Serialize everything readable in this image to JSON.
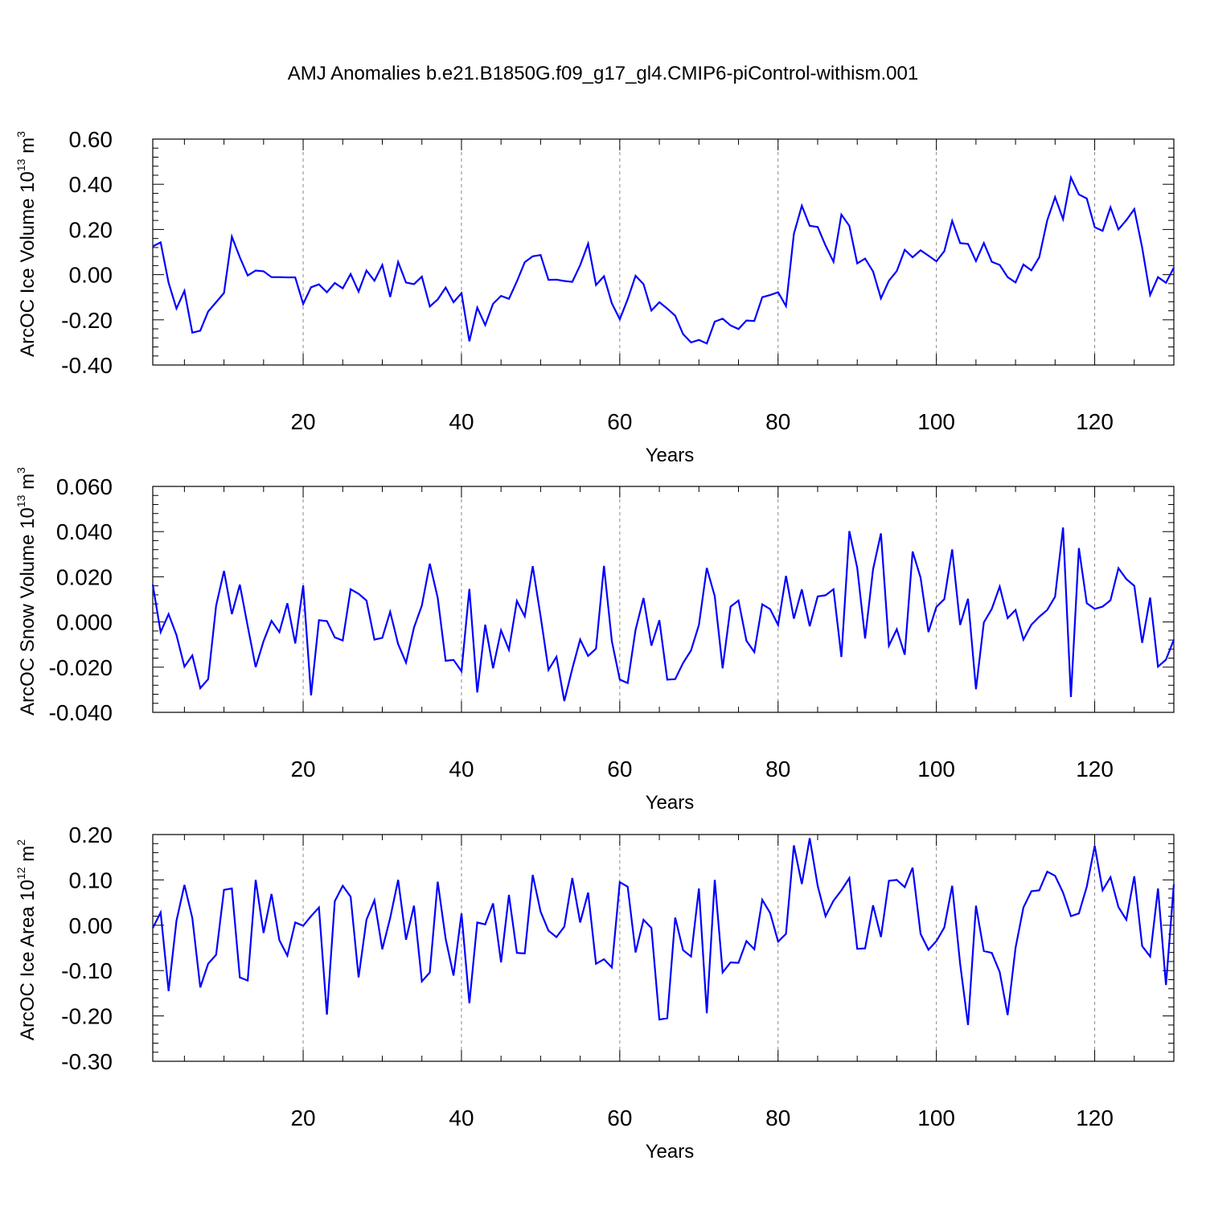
{
  "figure_title": "AMJ Anomalies b.e21.B1850G.f09_g17_gl4.CMIP6-piControl-withism.001",
  "line_color": "#0000ff",
  "chart_data": [
    {
      "type": "line",
      "title": "",
      "xlabel": "Years",
      "ylabel_main": "ArcOC Ice Volume 10",
      "ylabel_exp": "13",
      "ylabel_unit": " m",
      "ylabel_unit_exp": "3",
      "xlim": [
        1,
        130
      ],
      "ylim": [
        -0.4,
        0.6
      ],
      "x_ticks": [
        20,
        40,
        60,
        80,
        100,
        120
      ],
      "x_tick_labels": [
        "20",
        "40",
        "60",
        "80",
        "100",
        "120"
      ],
      "y_ticks": [
        -0.4,
        -0.2,
        0.0,
        0.2,
        0.4,
        0.6
      ],
      "y_tick_labels": [
        "-0.40",
        "-0.20",
        "0.00",
        "0.20",
        "0.40",
        "0.60"
      ],
      "grid_x": [
        20,
        40,
        60,
        80,
        100,
        120
      ],
      "series": [
        {
          "name": "Ice Volume",
          "x_start": 1,
          "values": [
            0.125,
            0.143,
            -0.036,
            -0.15,
            -0.072,
            -0.257,
            -0.248,
            -0.163,
            -0.122,
            -0.081,
            0.168,
            0.077,
            -0.004,
            0.018,
            0.015,
            -0.011,
            -0.011,
            -0.012,
            -0.012,
            -0.13,
            -0.056,
            -0.043,
            -0.078,
            -0.037,
            -0.061,
            0.003,
            -0.075,
            0.018,
            -0.027,
            0.043,
            -0.099,
            0.056,
            -0.035,
            -0.042,
            -0.009,
            -0.141,
            -0.11,
            -0.057,
            -0.122,
            -0.082,
            -0.295,
            -0.146,
            -0.223,
            -0.129,
            -0.094,
            -0.107,
            -0.03,
            0.055,
            0.081,
            0.087,
            -0.023,
            -0.022,
            -0.028,
            -0.032,
            0.042,
            0.137,
            -0.046,
            -0.007,
            -0.127,
            -0.197,
            -0.109,
            -0.005,
            -0.042,
            -0.159,
            -0.122,
            -0.15,
            -0.182,
            -0.263,
            -0.3,
            -0.289,
            -0.305,
            -0.208,
            -0.195,
            -0.225,
            -0.241,
            -0.203,
            -0.205,
            -0.1,
            -0.09,
            -0.078,
            -0.139,
            0.18,
            0.305,
            0.216,
            0.211,
            0.129,
            0.057,
            0.266,
            0.216,
            0.05,
            0.071,
            0.014,
            -0.105,
            -0.027,
            0.016,
            0.11,
            0.077,
            0.108,
            0.084,
            0.059,
            0.104,
            0.238,
            0.14,
            0.136,
            0.06,
            0.14,
            0.057,
            0.043,
            -0.011,
            -0.035,
            0.045,
            0.019,
            0.077,
            0.24,
            0.343,
            0.246,
            0.43,
            0.355,
            0.337,
            0.21,
            0.194,
            0.298,
            0.2,
            0.241,
            0.29,
            0.12,
            -0.09,
            -0.011,
            -0.036,
            0.031
          ]
        }
      ]
    },
    {
      "type": "line",
      "title": "",
      "xlabel": "Years",
      "ylabel_main": "ArcOC Snow Volume 10",
      "ylabel_exp": "13",
      "ylabel_unit": " m",
      "ylabel_unit_exp": "3",
      "xlim": [
        1,
        130
      ],
      "ylim": [
        -0.04,
        0.06
      ],
      "x_ticks": [
        20,
        40,
        60,
        80,
        100,
        120
      ],
      "x_tick_labels": [
        "20",
        "40",
        "60",
        "80",
        "100",
        "120"
      ],
      "y_ticks": [
        -0.04,
        -0.02,
        0.0,
        0.02,
        0.04,
        0.06
      ],
      "y_tick_labels": [
        "-0.040",
        "-0.020",
        "0.000",
        "0.020",
        "0.040",
        "0.060"
      ],
      "grid_x": [
        20,
        40,
        60,
        80,
        100,
        120
      ],
      "series": [
        {
          "name": "Snow Volume",
          "x_start": 1,
          "values": [
            0.0165,
            -0.0045,
            0.0035,
            -0.0058,
            -0.0198,
            -0.0148,
            -0.0293,
            -0.0253,
            0.0072,
            0.0226,
            0.0035,
            0.0165,
            -0.0019,
            -0.02,
            -0.0085,
            0.0005,
            -0.0045,
            0.0083,
            -0.0095,
            0.0162,
            -0.0325,
            0.0008,
            0.0004,
            -0.0068,
            -0.0082,
            0.0145,
            0.0125,
            0.0095,
            -0.0078,
            -0.007,
            0.0045,
            -0.0098,
            -0.018,
            -0.0025,
            0.0073,
            0.0258,
            0.0107,
            -0.0172,
            -0.0168,
            -0.0218,
            0.0146,
            -0.0312,
            -0.0012,
            -0.0205,
            -0.0037,
            -0.0123,
            0.0093,
            0.0025,
            0.0247,
            0.0025,
            -0.0212,
            -0.0154,
            -0.035,
            -0.0207,
            -0.0078,
            -0.015,
            -0.0118,
            0.0248,
            -0.0085,
            -0.0255,
            -0.027,
            -0.0035,
            0.0106,
            -0.0105,
            0.0008,
            -0.0255,
            -0.0253,
            -0.0182,
            -0.0126,
            -0.0013,
            0.0239,
            0.0114,
            -0.0205,
            0.0068,
            0.0095,
            -0.0083,
            -0.0133,
            0.0078,
            0.0057,
            -0.0013,
            0.0204,
            0.0015,
            0.0144,
            -0.0019,
            0.0113,
            0.0118,
            0.0145,
            -0.0155,
            0.0402,
            0.024,
            -0.0073,
            0.0233,
            0.0392,
            -0.0105,
            -0.0032,
            -0.0145,
            0.0312,
            0.0196,
            -0.0045,
            0.0067,
            0.0101,
            0.0321,
            -0.0013,
            0.0103,
            -0.0298,
            -0.0002,
            0.0058,
            0.0157,
            0.0017,
            0.0053,
            -0.0078,
            -0.0012,
            0.0023,
            0.0053,
            0.0112,
            0.0418,
            -0.0332,
            0.0327,
            0.0083,
            0.0058,
            0.0068,
            0.0096,
            0.0238,
            0.019,
            0.016,
            -0.0092,
            0.0108,
            -0.0198,
            -0.0167,
            -0.0078
          ]
        }
      ]
    },
    {
      "type": "line",
      "title": "",
      "xlabel": "Years",
      "ylabel_main": "ArcOC Ice Area 10",
      "ylabel_exp": "12",
      "ylabel_unit": " m",
      "ylabel_unit_exp": "2",
      "xlim": [
        1,
        130
      ],
      "ylim": [
        -0.3,
        0.2
      ],
      "x_ticks": [
        20,
        40,
        60,
        80,
        100,
        120
      ],
      "x_tick_labels": [
        "20",
        "40",
        "60",
        "80",
        "100",
        "120"
      ],
      "y_ticks": [
        -0.3,
        -0.2,
        -0.1,
        0.0,
        0.1,
        0.2
      ],
      "y_tick_labels": [
        "-0.30",
        "-0.20",
        "-0.10",
        "0.00",
        "0.10",
        "0.20"
      ],
      "grid_x": [
        20,
        40,
        60,
        80,
        100,
        120
      ],
      "series": [
        {
          "name": "Ice Area",
          "x_start": 1,
          "values": [
            -0.006,
            0.028,
            -0.145,
            0.01,
            0.089,
            0.016,
            -0.137,
            -0.085,
            -0.065,
            0.078,
            0.081,
            -0.115,
            -0.122,
            0.1,
            -0.017,
            0.069,
            -0.033,
            -0.067,
            0.006,
            -0.001,
            0.02,
            0.039,
            -0.197,
            0.053,
            0.087,
            0.063,
            -0.115,
            0.012,
            0.055,
            -0.053,
            0.016,
            0.1,
            -0.032,
            0.043,
            -0.124,
            -0.104,
            0.096,
            -0.03,
            -0.111,
            0.026,
            -0.172,
            0.006,
            0.002,
            0.048,
            -0.082,
            0.067,
            -0.061,
            -0.062,
            0.111,
            0.03,
            -0.012,
            -0.026,
            -0.003,
            0.104,
            0.006,
            0.072,
            -0.085,
            -0.075,
            -0.093,
            0.095,
            0.085,
            -0.06,
            0.012,
            -0.006,
            -0.208,
            -0.205,
            0.017,
            -0.055,
            -0.069,
            0.081,
            -0.194,
            0.1,
            -0.104,
            -0.082,
            -0.083,
            -0.035,
            -0.053,
            0.056,
            0.027,
            -0.036,
            -0.019,
            0.176,
            0.091,
            0.192,
            0.087,
            0.02,
            0.054,
            0.077,
            0.104,
            -0.052,
            -0.051,
            0.044,
            -0.026,
            0.098,
            0.1,
            0.084,
            0.127,
            -0.019,
            -0.054,
            -0.035,
            -0.005,
            0.087,
            -0.085,
            -0.22,
            0.043,
            -0.057,
            -0.061,
            -0.103,
            -0.198,
            -0.05,
            0.039,
            0.075,
            0.077,
            0.118,
            0.109,
            0.072,
            0.02,
            0.026,
            0.085,
            0.175,
            0.077,
            0.106,
            0.04,
            0.012,
            0.108,
            -0.046,
            -0.069,
            0.081,
            -0.132,
            0.09
          ]
        }
      ]
    }
  ]
}
